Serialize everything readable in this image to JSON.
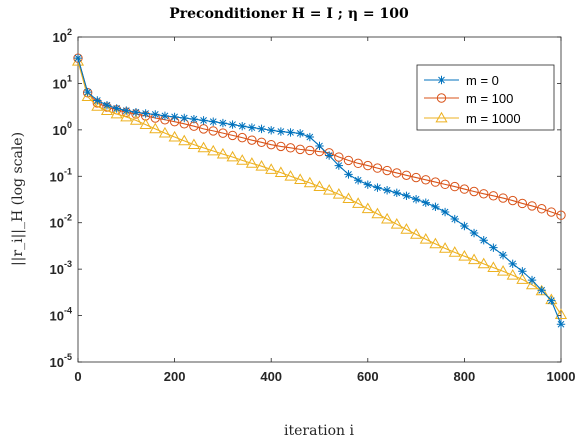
{
  "chart_data": {
    "type": "line",
    "title": "Preconditioner H = I ; η = 100",
    "xlabel": "iteration i",
    "ylabel": "||r_i||_H (log scale)",
    "xlim": [
      0,
      1000
    ],
    "ylim": [
      1e-05,
      100
    ],
    "yscale": "log",
    "x_ticks": [
      "0",
      "200",
      "400",
      "600",
      "800",
      "1000"
    ],
    "y_ticks": [
      {
        "base": "10",
        "exp": "-5"
      },
      {
        "base": "10",
        "exp": "-4"
      },
      {
        "base": "10",
        "exp": "-3"
      },
      {
        "base": "10",
        "exp": "-2"
      },
      {
        "base": "10",
        "exp": "-1"
      },
      {
        "base": "10",
        "exp": "0"
      },
      {
        "base": "10",
        "exp": "1"
      },
      {
        "base": "10",
        "exp": "2"
      }
    ],
    "grid": false,
    "legend_position": "top-right",
    "x": [
      0,
      20,
      40,
      60,
      80,
      100,
      120,
      140,
      160,
      180,
      200,
      220,
      240,
      260,
      280,
      300,
      320,
      340,
      360,
      380,
      400,
      420,
      440,
      460,
      480,
      500,
      520,
      540,
      560,
      580,
      600,
      620,
      640,
      660,
      680,
      700,
      720,
      740,
      760,
      780,
      800,
      820,
      840,
      860,
      880,
      900,
      920,
      940,
      960,
      980,
      1000
    ],
    "series": [
      {
        "name": "m = 0",
        "color": "#0072BD",
        "marker": "asterisk",
        "values": [
          35,
          6.5,
          4.3,
          3.4,
          2.9,
          2.6,
          2.4,
          2.25,
          2.15,
          2.0,
          1.9,
          1.8,
          1.7,
          1.6,
          1.5,
          1.4,
          1.3,
          1.2,
          1.12,
          1.05,
          0.98,
          0.92,
          0.88,
          0.84,
          0.7,
          0.45,
          0.28,
          0.17,
          0.11,
          0.082,
          0.066,
          0.057,
          0.05,
          0.044,
          0.038,
          0.032,
          0.027,
          0.022,
          0.017,
          0.012,
          0.0085,
          0.006,
          0.0042,
          0.0029,
          0.002,
          0.0013,
          0.0009,
          0.00058,
          0.00035,
          0.00021,
          6.5e-05
        ]
      },
      {
        "name": "m = 100",
        "color": "#D95319",
        "marker": "circle",
        "values": [
          35,
          6.3,
          3.8,
          3.1,
          2.7,
          2.4,
          2.2,
          2.0,
          1.8,
          1.65,
          1.5,
          1.35,
          1.2,
          1.05,
          0.95,
          0.85,
          0.76,
          0.68,
          0.6,
          0.54,
          0.48,
          0.44,
          0.41,
          0.38,
          0.36,
          0.34,
          0.32,
          0.26,
          0.22,
          0.19,
          0.17,
          0.15,
          0.133,
          0.118,
          0.105,
          0.094,
          0.084,
          0.075,
          0.067,
          0.06,
          0.053,
          0.047,
          0.042,
          0.038,
          0.034,
          0.03,
          0.026,
          0.023,
          0.02,
          0.017,
          0.0145
        ]
      },
      {
        "name": "m = 1000",
        "color": "#EDB120",
        "marker": "triangle",
        "values": [
          30,
          5.2,
          3.2,
          2.6,
          2.2,
          1.9,
          1.6,
          1.3,
          1.05,
          0.85,
          0.7,
          0.58,
          0.48,
          0.41,
          0.35,
          0.3,
          0.26,
          0.22,
          0.19,
          0.165,
          0.14,
          0.12,
          0.1,
          0.085,
          0.072,
          0.06,
          0.05,
          0.041,
          0.033,
          0.026,
          0.02,
          0.0155,
          0.012,
          0.0093,
          0.0072,
          0.0056,
          0.0044,
          0.0035,
          0.0028,
          0.0023,
          0.0019,
          0.0016,
          0.0013,
          0.00108,
          0.0009,
          0.00074,
          0.0006,
          0.00046,
          0.00034,
          0.00022,
          0.000105
        ]
      }
    ]
  }
}
